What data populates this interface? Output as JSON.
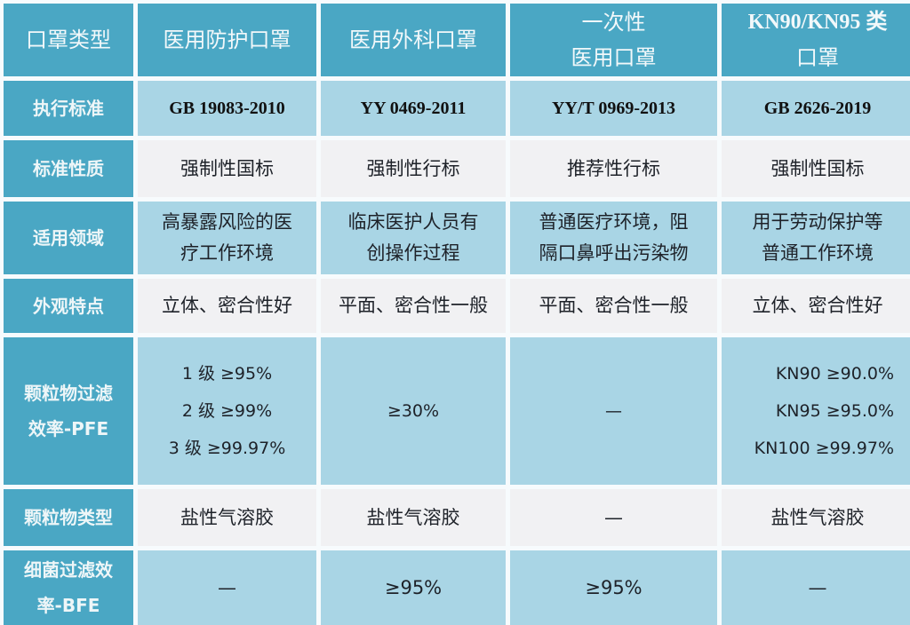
{
  "table": {
    "header": {
      "corner": "口罩类型",
      "columns": [
        {
          "lines": [
            "医用防护口罩"
          ]
        },
        {
          "lines": [
            "医用外科口罩"
          ]
        },
        {
          "lines": [
            "一次性",
            "医用口罩"
          ]
        },
        {
          "lines": [
            "KN90/KN95 类",
            "口罩"
          ]
        }
      ]
    },
    "rows": [
      {
        "label": [
          "执行标准"
        ],
        "cells": [
          [
            "GB 19083-2010"
          ],
          [
            "YY 0469-2011"
          ],
          [
            "YY/T 0969-2013"
          ],
          [
            "GB 2626-2019"
          ]
        ]
      },
      {
        "label": [
          "标准性质"
        ],
        "cells": [
          [
            "强制性国标"
          ],
          [
            "强制性行标"
          ],
          [
            "推荐性行标"
          ],
          [
            "强制性国标"
          ]
        ]
      },
      {
        "label": [
          "适用领域"
        ],
        "cells": [
          [
            "高暴露风险的医",
            "疗工作环境"
          ],
          [
            "临床医护人员有",
            "创操作过程"
          ],
          [
            "普通医疗环境，阻",
            "隔口鼻呼出污染物"
          ],
          [
            "用于劳动保护等",
            "普通工作环境"
          ]
        ]
      },
      {
        "label": [
          "外观特点"
        ],
        "cells": [
          [
            "立体、密合性好"
          ],
          [
            "平面、密合性一般"
          ],
          [
            "平面、密合性一般"
          ],
          [
            "立体、密合性好"
          ]
        ]
      },
      {
        "label": [
          "颗粒物过滤",
          "效率-PFE"
        ],
        "cells": [
          [
            "1 级  ≥95%",
            "2 级  ≥99%",
            "3 级  ≥99.97%"
          ],
          [
            "≥30%"
          ],
          [
            "—"
          ],
          [
            "KN90  ≥90.0%",
            "KN95  ≥95.0%",
            "KN100  ≥99.97%"
          ]
        ]
      },
      {
        "label": [
          "颗粒物类型"
        ],
        "cells": [
          [
            "盐性气溶胶"
          ],
          [
            "盐性气溶胶"
          ],
          [
            "—"
          ],
          [
            "盐性气溶胶"
          ]
        ]
      },
      {
        "label": [
          "细菌过滤效",
          "率-BFE"
        ],
        "cells": [
          [
            "—"
          ],
          [
            "≥95%"
          ],
          [
            "≥95%"
          ],
          [
            "—"
          ]
        ]
      }
    ]
  },
  "colors": {
    "header_bg": "#4aa7c4",
    "blue_row_bg": "#a9d5e5",
    "light_row_bg": "#f1f1f3",
    "separator": "#f7fbfd"
  }
}
